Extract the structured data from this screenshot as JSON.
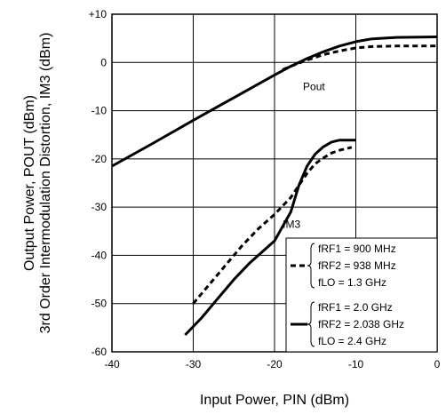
{
  "chart_data": {
    "type": "line",
    "xlabel": "Input Power, PIN (dBm)",
    "ylabel_line1": "3rd Order Intermodulation Distortion, IM3 (dBm)",
    "ylabel_line2": "Output Power, POUT (dBm)",
    "xlim": [
      -40,
      0
    ],
    "ylim": [
      -60,
      10
    ],
    "x_ticks": [
      -40,
      -30,
      -20,
      -10,
      0
    ],
    "x_tick_labels": [
      "-40",
      "-30",
      "-20",
      "-10",
      "0"
    ],
    "y_ticks": [
      10,
      0,
      -10,
      -20,
      -30,
      -40,
      -50,
      -60
    ],
    "y_tick_labels": [
      "+10",
      "0",
      "-10",
      "-20",
      "-30",
      "-40",
      "-50",
      "-60"
    ],
    "grid": true,
    "annotations": [
      {
        "text": "Pout",
        "x": -16.5,
        "y": -3.5
      },
      {
        "text": "IM3",
        "x": -19.0,
        "y": -32.5
      }
    ],
    "legend": {
      "placement": "bottom-right",
      "groups": [
        {
          "style": "dashed",
          "lines": [
            "fRF1 = 900 MHz",
            "fRF2 = 938 MHz",
            "fLO = 1.3 GHz"
          ]
        },
        {
          "style": "solid",
          "lines": [
            "fRF1 = 2.0 GHz",
            "fRF2 = 2.038 GHz",
            "fLO = 2.4 GHz"
          ]
        }
      ]
    },
    "series": [
      {
        "style": "solid",
        "group": 2,
        "points": [
          [
            -40,
            -21.5
          ],
          [
            -35,
            -16.8
          ],
          [
            -30,
            -12
          ],
          [
            -25,
            -7.3
          ],
          [
            -20,
            -2.6
          ],
          [
            -18,
            -0.8
          ],
          [
            -16,
            0.8
          ],
          [
            -14,
            2.2
          ],
          [
            -12,
            3.4
          ],
          [
            -10,
            4.3
          ],
          [
            -8,
            4.9
          ],
          [
            -5,
            5.2
          ],
          [
            0,
            5.3
          ]
        ]
      },
      {
        "style": "dashed",
        "group": 1,
        "points": [
          [
            -19,
            -1.5
          ],
          [
            -18,
            -0.8
          ],
          [
            -16,
            0.5
          ],
          [
            -14,
            1.6
          ],
          [
            -12,
            2.4
          ],
          [
            -10,
            3.0
          ],
          [
            -8,
            3.3
          ],
          [
            -5,
            3.4
          ],
          [
            0,
            3.4
          ]
        ]
      },
      {
        "style": "solid",
        "group": 2,
        "points": [
          [
            -31,
            -56.5
          ],
          [
            -29,
            -53
          ],
          [
            -27,
            -49
          ],
          [
            -25,
            -45
          ],
          [
            -23,
            -41.5
          ],
          [
            -20,
            -37
          ],
          [
            -18,
            -31
          ],
          [
            -17,
            -25.5
          ],
          [
            -16,
            -21.5
          ],
          [
            -15,
            -19
          ],
          [
            -14,
            -17.5
          ],
          [
            -13,
            -16.5
          ],
          [
            -12,
            -16.1
          ],
          [
            -10,
            -16.1
          ]
        ]
      },
      {
        "style": "dashed",
        "group": 1,
        "points": [
          [
            -30,
            -50
          ],
          [
            -28,
            -46
          ],
          [
            -26,
            -42
          ],
          [
            -24,
            -38
          ],
          [
            -22,
            -34.5
          ],
          [
            -20,
            -31.5
          ],
          [
            -18,
            -28
          ],
          [
            -17,
            -25.5
          ],
          [
            -16,
            -23
          ],
          [
            -15,
            -21
          ],
          [
            -14,
            -19.8
          ],
          [
            -13,
            -18.8
          ],
          [
            -12,
            -18.2
          ],
          [
            -11,
            -17.8
          ],
          [
            -10.5,
            -17.6
          ]
        ]
      }
    ]
  }
}
